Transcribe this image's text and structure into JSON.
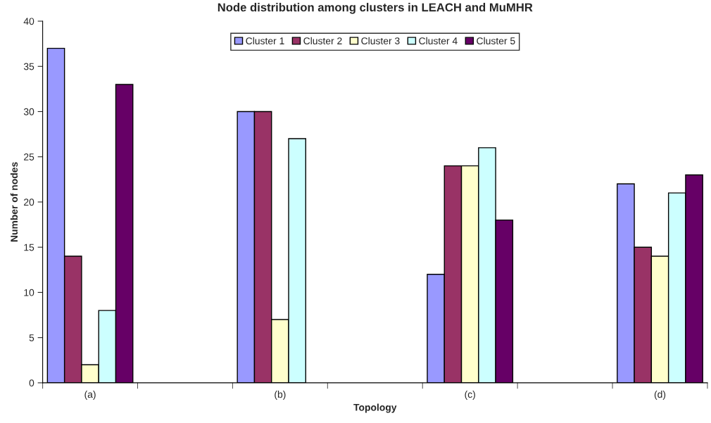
{
  "chart_data": {
    "type": "bar",
    "title": "Node distribution among clusters in LEACH and MuMHR",
    "xlabel": "Topology",
    "ylabel": "Number of nodes",
    "categories": [
      "(a)",
      null,
      "(b)",
      null,
      "(c)",
      null,
      "(d)"
    ],
    "series": [
      {
        "name": "Cluster 1",
        "color": "#9999ff",
        "values": [
          37,
          null,
          30,
          null,
          12,
          null,
          22
        ]
      },
      {
        "name": "Cluster 2",
        "color": "#993366",
        "values": [
          14,
          null,
          30,
          null,
          24,
          null,
          15
        ]
      },
      {
        "name": "Cluster 3",
        "color": "#ffffcc",
        "values": [
          2,
          null,
          7,
          null,
          24,
          null,
          14
        ]
      },
      {
        "name": "Cluster 4",
        "color": "#ccffff",
        "values": [
          8,
          null,
          27,
          null,
          26,
          null,
          21
        ]
      },
      {
        "name": "Cluster 5",
        "color": "#660066",
        "values": [
          33,
          null,
          null,
          null,
          18,
          null,
          23
        ]
      }
    ],
    "ylim": [
      0,
      40
    ],
    "yticks": [
      0,
      5,
      10,
      15,
      20,
      25,
      30,
      35,
      40
    ],
    "grid": false,
    "legend": "top"
  }
}
